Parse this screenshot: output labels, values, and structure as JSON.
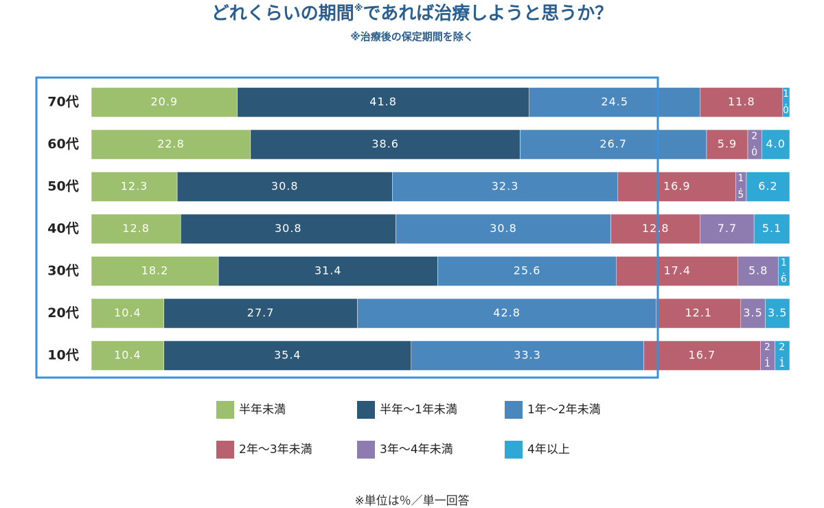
{
  "chart_data": {
    "type": "stacked-bar-horizontal",
    "title": [
      "どれくらいの期間",
      "※",
      "であれば治療しようと思うか？"
    ],
    "subtitle": "※治療後の保定期間を除く",
    "note": "※単位は％／単一回答",
    "categories": [
      "70代",
      "60代",
      "50代",
      "40代",
      "30代",
      "20代",
      "10代"
    ],
    "xlim": [
      0,
      100
    ],
    "series": [
      {
        "name": "半年未満",
        "color": "#9dc06e",
        "values": [
          20.9,
          22.8,
          12.3,
          12.8,
          18.2,
          10.4,
          10.4
        ],
        "value_labels": [
          "20.9",
          "22.8",
          "12.3",
          "12.8",
          "18.2",
          "10.4",
          "10.4"
        ]
      },
      {
        "name": "半年～1年未満",
        "color": "#2d5777",
        "values": [
          41.8,
          38.6,
          30.8,
          30.8,
          31.4,
          27.7,
          35.4
        ],
        "value_labels": [
          "41.8",
          "38.6",
          "30.8",
          "30.8",
          "31.4",
          "27.7",
          "35.4"
        ]
      },
      {
        "name": "1年～2年未満",
        "color": "#4a87bd",
        "values": [
          24.5,
          26.7,
          32.3,
          30.8,
          25.6,
          42.8,
          33.3
        ],
        "value_labels": [
          "24.5",
          "26.7",
          "32.3",
          "30.8",
          "25.6",
          "42.8",
          "33.3"
        ]
      },
      {
        "name": "2年～3年未満",
        "color": "#b9616e",
        "values": [
          11.8,
          5.9,
          16.9,
          12.8,
          17.4,
          12.1,
          16.7
        ],
        "value_labels": [
          "11.8",
          "5.9",
          "16.9",
          "12.8",
          "17.4",
          "12.1",
          "16.7"
        ]
      },
      {
        "name": "3年～4年未満",
        "color": "#8e7bb0",
        "values": [
          null,
          2.0,
          1.5,
          7.7,
          5.8,
          3.5,
          2.1
        ],
        "value_labels": [
          null,
          "2.0",
          "1.5",
          "7.7",
          "5.8",
          "3.5",
          "2.1"
        ]
      },
      {
        "name": "4年以上",
        "color": "#2fa8d6",
        "values": [
          1.0,
          4.0,
          6.2,
          5.1,
          1.6,
          3.5,
          2.1
        ],
        "value_labels": [
          "1.0",
          "4.0",
          "6.2",
          "5.1",
          "1.6",
          "3.5",
          "2.1"
        ]
      }
    ]
  }
}
